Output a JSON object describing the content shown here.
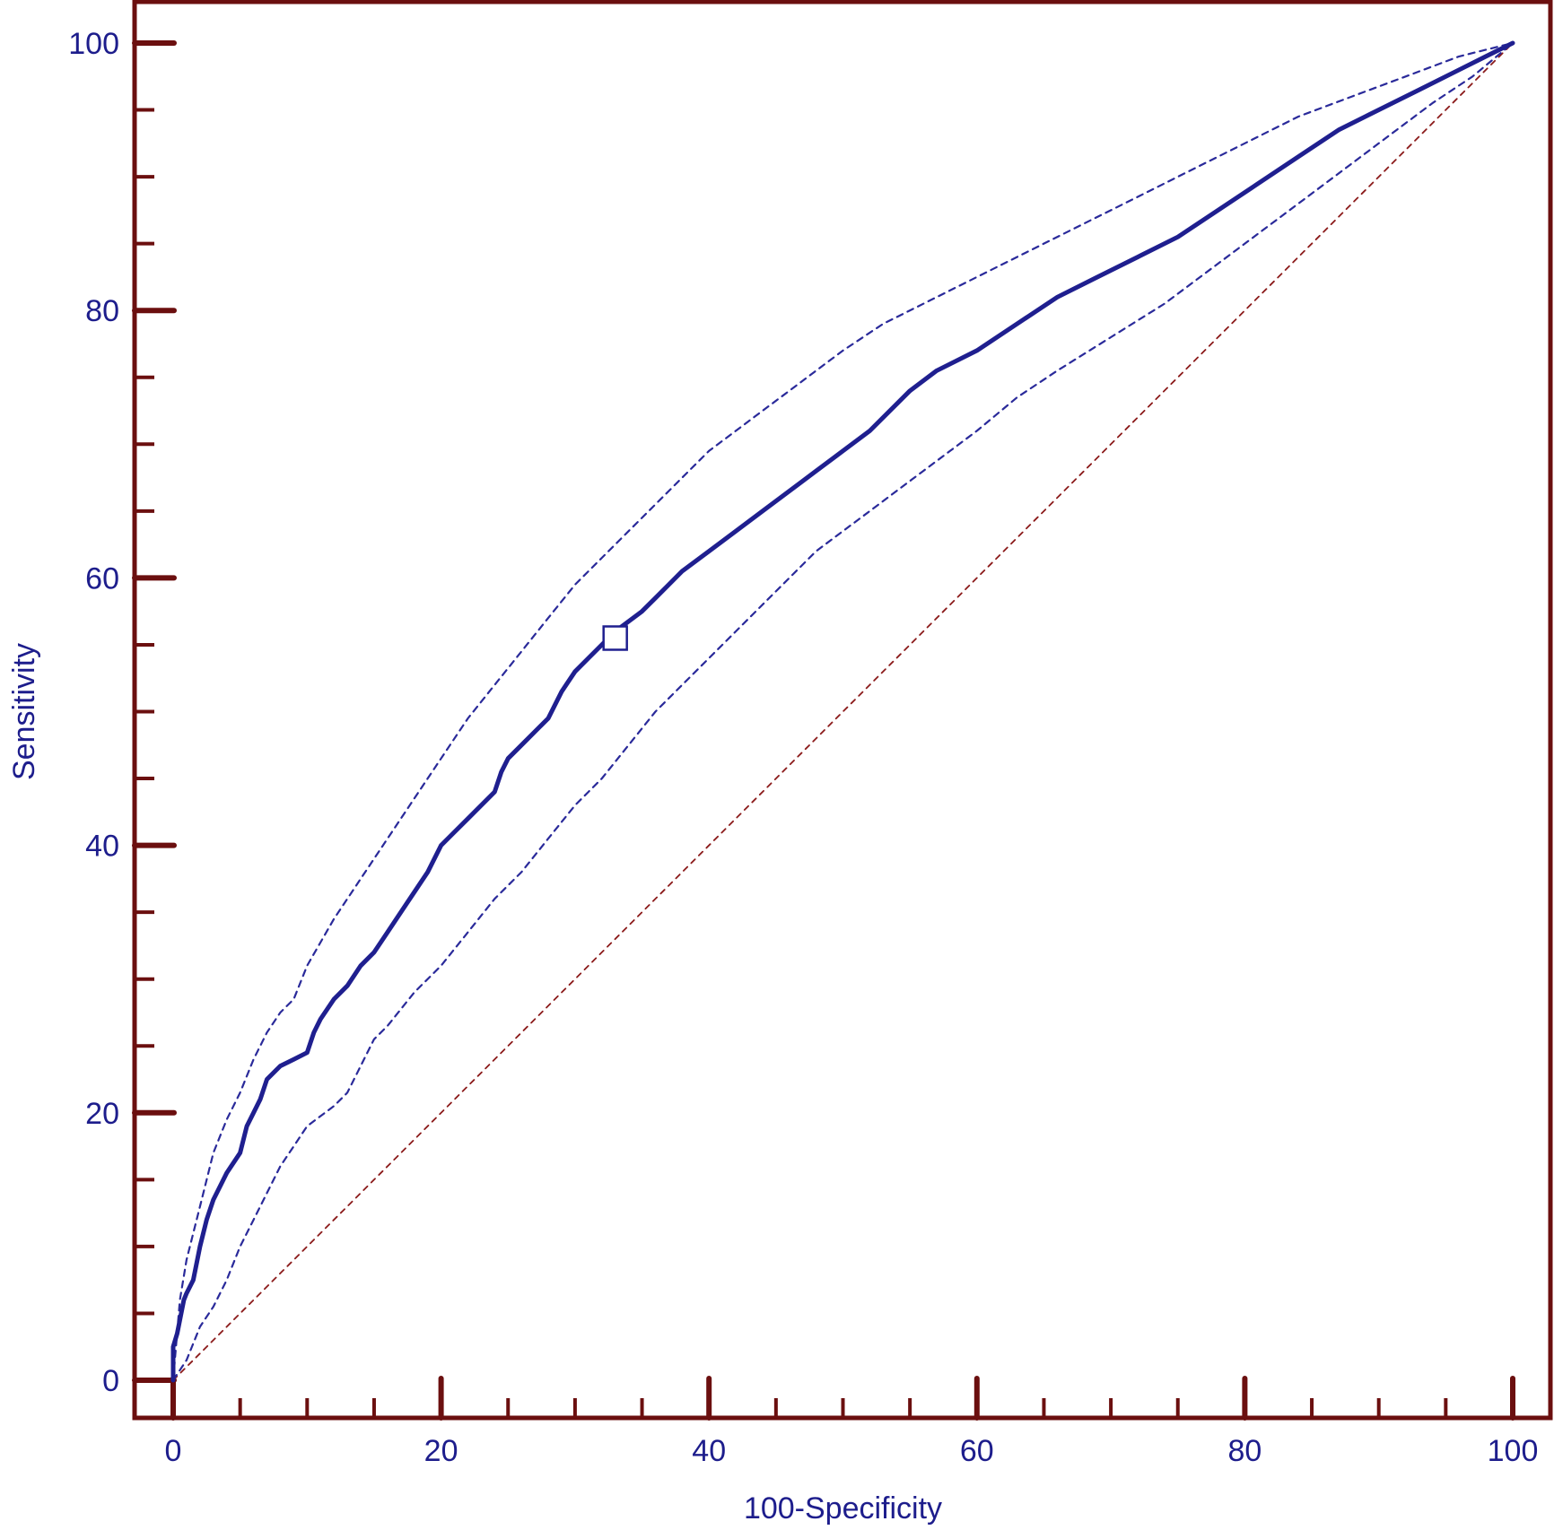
{
  "colors": {
    "frame": "#6b0f0f",
    "curve": "#1f1f8f",
    "ci": "#2a2a9a",
    "diagonal": "#8b1a1a",
    "text": "#1d1d8c"
  },
  "chart_data": {
    "type": "line",
    "xlabel": "100-Specificity",
    "ylabel": "Sensitivity",
    "xlim": [
      0,
      100
    ],
    "ylim": [
      0,
      100
    ],
    "x_ticks": [
      "0",
      "20",
      "40",
      "60",
      "80",
      "100"
    ],
    "y_ticks": [
      "0",
      "20",
      "40",
      "60",
      "80",
      "100"
    ],
    "grid": false,
    "series": [
      {
        "role": "roc-curve",
        "style": "solid",
        "x": [
          0,
          0,
          0.3,
          0.8,
          1,
          1.5,
          2,
          2.5,
          3,
          3.5,
          4,
          5,
          5.5,
          6,
          6.5,
          7,
          8,
          9,
          10,
          10.5,
          11,
          12,
          13,
          14,
          15,
          16,
          17,
          18,
          19,
          20,
          22,
          24,
          24.5,
          25,
          26,
          27,
          28,
          29,
          30,
          31,
          33,
          35,
          36,
          37,
          38,
          40,
          42,
          44,
          46,
          48,
          50,
          52,
          55,
          57,
          60,
          63,
          66,
          69,
          72,
          75,
          78,
          81,
          84,
          87,
          90,
          93,
          96,
          98,
          100
        ],
        "y": [
          0,
          2.5,
          3.5,
          6,
          6.5,
          7.5,
          10,
          12,
          13.5,
          14.5,
          15.5,
          17,
          19,
          20,
          21,
          22.5,
          23.5,
          24,
          24.5,
          26,
          27,
          28.5,
          29.5,
          31,
          32,
          33.5,
          35,
          36.5,
          38,
          40,
          42,
          44,
          45.5,
          46.5,
          47.5,
          48.5,
          49.5,
          51.5,
          53,
          54,
          56,
          57.5,
          58.5,
          59.5,
          60.5,
          62,
          63.5,
          65,
          66.5,
          68,
          69.5,
          71,
          74,
          75.5,
          77,
          79,
          81,
          82.5,
          84,
          85.5,
          87.5,
          89.5,
          91.5,
          93.5,
          95,
          96.5,
          98,
          99,
          100
        ]
      },
      {
        "role": "ci-upper",
        "style": "dashed",
        "x": [
          0,
          0.5,
          1,
          2,
          3,
          4,
          5,
          6,
          7,
          8,
          9,
          10,
          12,
          14,
          16,
          18,
          20,
          22,
          24,
          26,
          28,
          30,
          32,
          34,
          36,
          38,
          40,
          42,
          44,
          46,
          48,
          50,
          53,
          56,
          60,
          64,
          68,
          72,
          76,
          80,
          84,
          88,
          92,
          96,
          100
        ],
        "y": [
          0,
          6,
          9,
          13,
          17,
          19.5,
          21.5,
          24,
          26,
          27.5,
          28.5,
          31,
          34.5,
          37.5,
          40.5,
          43.5,
          46.5,
          49.5,
          52,
          54.5,
          57,
          59.5,
          61.5,
          63.5,
          65.5,
          67.5,
          69.5,
          71,
          72.5,
          74,
          75.5,
          77,
          79,
          80.5,
          82.5,
          84.5,
          86.5,
          88.5,
          90.5,
          92.5,
          94.5,
          96,
          97.5,
          99,
          100
        ]
      },
      {
        "role": "ci-lower",
        "style": "dashed",
        "x": [
          0,
          1,
          2,
          3,
          4,
          5,
          6,
          7,
          8,
          9,
          10,
          12,
          13,
          14,
          15,
          16,
          18,
          20,
          22,
          24,
          26,
          28,
          30,
          32,
          34,
          36,
          38,
          40,
          42,
          44,
          46,
          48,
          50,
          52,
          54,
          56,
          58,
          60,
          63,
          66,
          70,
          74,
          78,
          82,
          86,
          90,
          94,
          97,
          100
        ],
        "y": [
          0,
          1.5,
          4,
          5.5,
          7.5,
          10,
          12,
          14,
          16,
          17.5,
          19,
          20.5,
          21.5,
          23.5,
          25.5,
          26.5,
          29,
          31,
          33.5,
          36,
          38,
          40.5,
          43,
          45,
          47.5,
          50,
          52,
          54,
          56,
          58,
          60,
          62,
          63.5,
          65,
          66.5,
          68,
          69.5,
          71,
          73.5,
          75.5,
          78,
          80.5,
          83.5,
          86.5,
          89.5,
          92.5,
          95.5,
          97.5,
          100
        ]
      },
      {
        "role": "reference-diagonal",
        "style": "dashed",
        "x": [
          0,
          100
        ],
        "y": [
          0,
          100
        ]
      }
    ],
    "markers": [
      {
        "role": "optimal-cutoff",
        "shape": "open-square",
        "x": 33,
        "y": 55.5
      }
    ]
  }
}
